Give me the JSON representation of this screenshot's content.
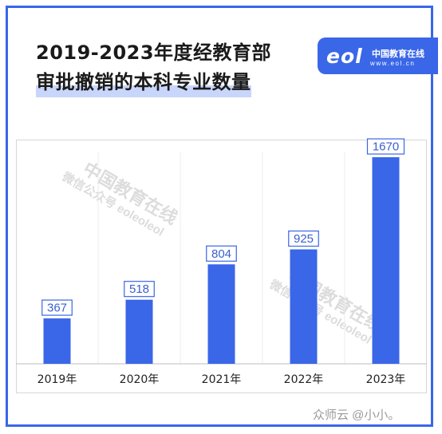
{
  "title": {
    "line1": "2019-2023年度经教育部",
    "line2": "审批撤销的本科专业数量"
  },
  "brand": {
    "logo": "eol",
    "name": "中国教育在线",
    "url": "www.eol.cn"
  },
  "watermarks": {
    "brand": "中国教育在线",
    "wechat": "微信公众号 eoleoleol"
  },
  "footer_watermark": "众师云 @小小。",
  "colors": {
    "accent": "#3a66e8",
    "frame": "#3a66e8",
    "highlight": "#c9d6fb"
  },
  "chart_data": {
    "type": "bar",
    "categories": [
      "2019年",
      "2020年",
      "2021年",
      "2022年",
      "2023年"
    ],
    "values": [
      367,
      518,
      804,
      925,
      1670
    ],
    "data_labels": [
      "367",
      "518",
      "804",
      "925",
      "1670"
    ],
    "title": "2019-2023年度经教育部审批撤销的本科专业数量",
    "xlabel": "",
    "ylabel": "",
    "ylim": [
      0,
      1780
    ],
    "grid": false,
    "legend": "none",
    "color": "#3a66e8"
  }
}
